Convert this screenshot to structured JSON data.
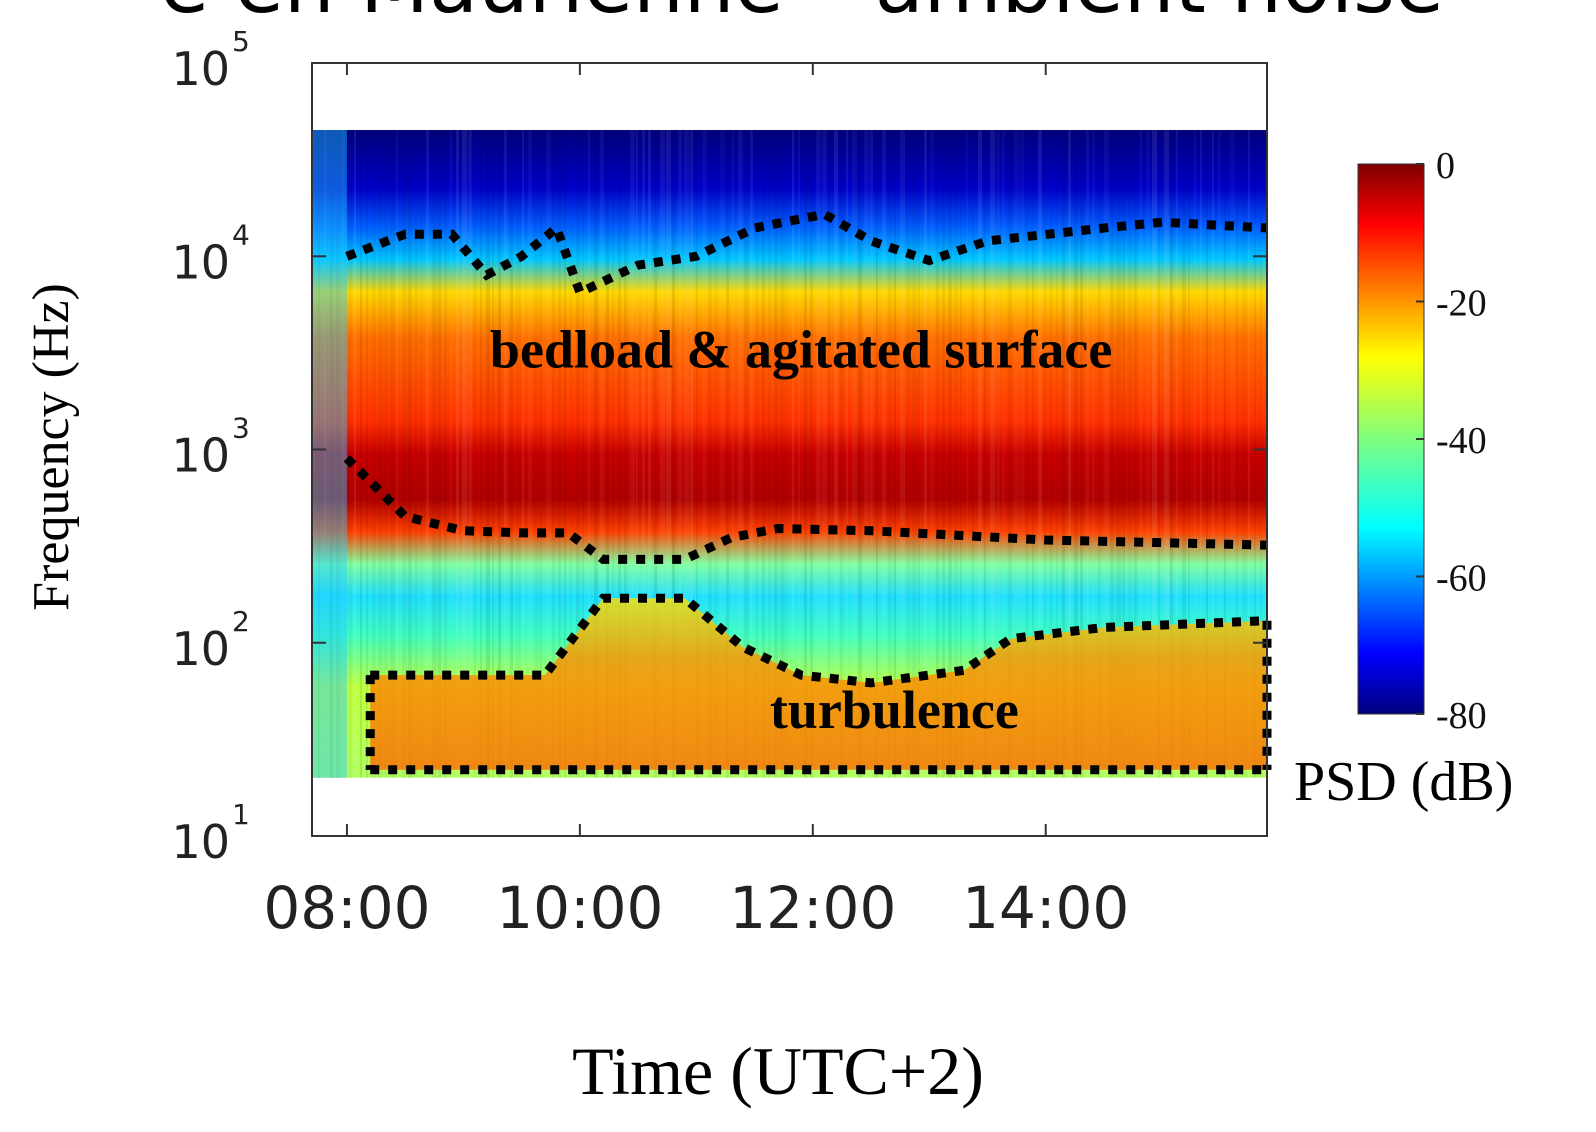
{
  "header": {
    "clipped_title": "e en Maurienne – ambient noise"
  },
  "chart_data": {
    "type": "heatmap",
    "title": "",
    "xlabel": "Time (UTC+2)",
    "ylabel": "Frequency (Hz)",
    "x_ticks": [
      "08:00",
      "10:00",
      "12:00",
      "14:00"
    ],
    "x_tick_hours": [
      8,
      10,
      12,
      14
    ],
    "xlim_hours": [
      7.7,
      15.9
    ],
    "y_scale": "log",
    "ylim": [
      10,
      100000
    ],
    "y_ticks": [
      {
        "value": 10,
        "base": "10",
        "exp": "1"
      },
      {
        "value": 100,
        "base": "10",
        "exp": "2"
      },
      {
        "value": 1000,
        "base": "10",
        "exp": "3"
      },
      {
        "value": 10000,
        "base": "10",
        "exp": "4"
      },
      {
        "value": 100000,
        "base": "10",
        "exp": "5"
      }
    ],
    "data_frequency_range_hz": [
      20,
      45000
    ],
    "colorbar": {
      "label": "PSD (dB)",
      "min": -80,
      "max": 0,
      "ticks": [
        "0",
        "-20",
        "-40",
        "-60",
        "-80"
      ],
      "tick_values": [
        0,
        -20,
        -40,
        -60,
        -80
      ],
      "colormap": "jet"
    },
    "annotations": [
      {
        "text": "bedload & agitated surface",
        "time_hour": 11.9,
        "freq_hz": 3300
      },
      {
        "text": "turbulence",
        "time_hour": 12.7,
        "freq_hz": 45
      }
    ],
    "regions": [
      {
        "name": "bedload & agitated surface",
        "upper_boundary": [
          {
            "t": 8.0,
            "f": 10000
          },
          {
            "t": 8.5,
            "f": 13000
          },
          {
            "t": 8.9,
            "f": 13000
          },
          {
            "t": 9.2,
            "f": 8000
          },
          {
            "t": 9.5,
            "f": 10000
          },
          {
            "t": 9.8,
            "f": 14000
          },
          {
            "t": 10.0,
            "f": 6500
          },
          {
            "t": 10.5,
            "f": 9000
          },
          {
            "t": 11.0,
            "f": 10000
          },
          {
            "t": 11.5,
            "f": 14000
          },
          {
            "t": 12.1,
            "f": 16500
          },
          {
            "t": 12.5,
            "f": 12000
          },
          {
            "t": 13.0,
            "f": 9500
          },
          {
            "t": 13.5,
            "f": 12000
          },
          {
            "t": 14.5,
            "f": 14000
          },
          {
            "t": 15.0,
            "f": 15000
          },
          {
            "t": 15.9,
            "f": 14000
          }
        ],
        "lower_boundary": [
          {
            "t": 8.0,
            "f": 900
          },
          {
            "t": 8.5,
            "f": 450
          },
          {
            "t": 9.0,
            "f": 380
          },
          {
            "t": 9.5,
            "f": 370
          },
          {
            "t": 9.9,
            "f": 370
          },
          {
            "t": 10.2,
            "f": 270
          },
          {
            "t": 10.9,
            "f": 270
          },
          {
            "t": 11.3,
            "f": 350
          },
          {
            "t": 11.7,
            "f": 390
          },
          {
            "t": 12.5,
            "f": 380
          },
          {
            "t": 14.0,
            "f": 340
          },
          {
            "t": 15.9,
            "f": 320
          }
        ]
      },
      {
        "name": "turbulence",
        "upper_boundary": [
          {
            "t": 8.2,
            "f": 68
          },
          {
            "t": 9.7,
            "f": 68
          },
          {
            "t": 10.2,
            "f": 170
          },
          {
            "t": 10.9,
            "f": 170
          },
          {
            "t": 11.4,
            "f": 95
          },
          {
            "t": 11.9,
            "f": 68
          },
          {
            "t": 12.5,
            "f": 62
          },
          {
            "t": 13.3,
            "f": 72
          },
          {
            "t": 13.7,
            "f": 105
          },
          {
            "t": 14.5,
            "f": 120
          },
          {
            "t": 15.9,
            "f": 130
          }
        ],
        "lower_boundary": [
          {
            "t": 8.2,
            "f": 22
          },
          {
            "t": 15.9,
            "f": 22
          }
        ]
      }
    ]
  }
}
